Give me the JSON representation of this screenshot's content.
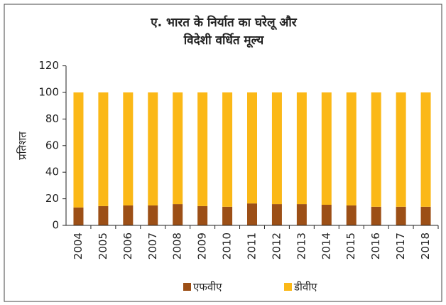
{
  "chart_data": {
    "type": "stacked_bar",
    "title": [
      "ए. भारत के निर्यात का घरेलू और",
      "विदेशी वर्धित मूल्य"
    ],
    "y_label": "प्रतिशत",
    "categories": [
      "2004",
      "2005",
      "2006",
      "2007",
      "2008",
      "2009",
      "2010",
      "2011",
      "2012",
      "2013",
      "2014",
      "2015",
      "2016",
      "2017",
      "2018"
    ],
    "series": [
      {
        "name": "एफवीए",
        "color": "#9c4f16",
        "values": [
          13.5,
          14.5,
          15,
          15,
          16,
          14.5,
          14,
          16.5,
          16,
          16,
          15.5,
          15,
          14,
          14,
          14
        ]
      },
      {
        "name": "डीवीए",
        "color": "#fbb817",
        "values": [
          86.5,
          85.5,
          85,
          85,
          84,
          85.5,
          86,
          83.5,
          84,
          84,
          84.5,
          85,
          86,
          86,
          86
        ]
      }
    ],
    "ylim": [
      0,
      120
    ],
    "yticks": [
      0,
      20,
      40,
      60,
      80,
      100,
      120
    ],
    "legend": "bottom"
  }
}
